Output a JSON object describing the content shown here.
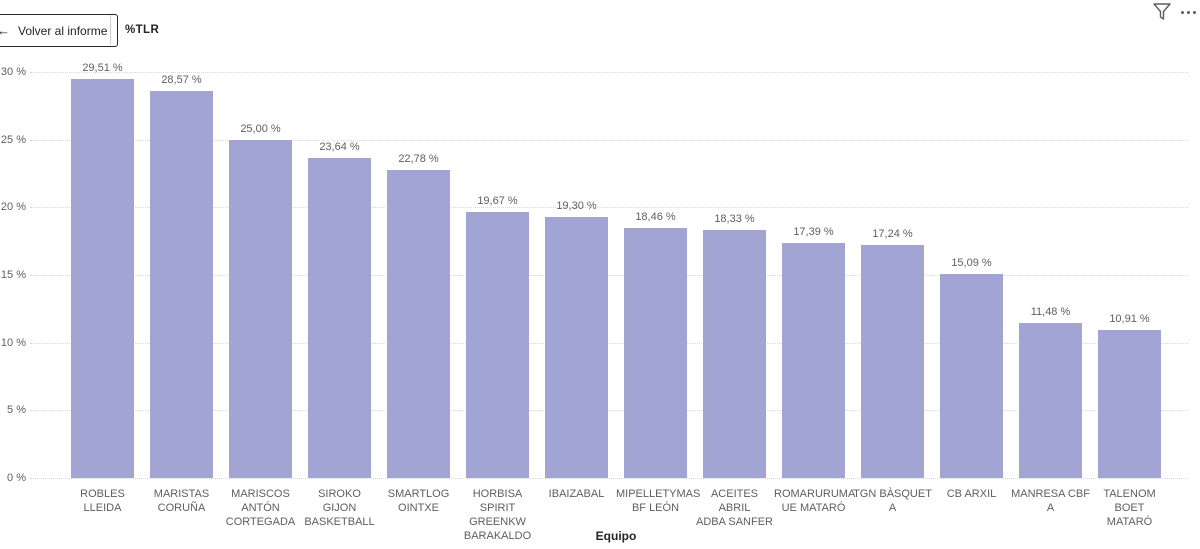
{
  "header": {
    "back_button_label": "Volver al informe",
    "back_arrow_glyph": "←",
    "title": "%TLR",
    "icons": {
      "filter": "filter-funnel-icon",
      "more_options": "ellipsis-icon"
    }
  },
  "chart_data": {
    "type": "bar",
    "title": "%TLR",
    "xlabel": "Equipo",
    "ylabel": "",
    "ylim": [
      0,
      30
    ],
    "grid": true,
    "bar_color": "#a2a4d4",
    "label_color": "#605e5c",
    "y_ticks": [
      {
        "v": 0,
        "label": "0 %"
      },
      {
        "v": 5,
        "label": "5 %"
      },
      {
        "v": 10,
        "label": "10 %"
      },
      {
        "v": 15,
        "label": "15 %"
      },
      {
        "v": 20,
        "label": "20 %"
      },
      {
        "v": 25,
        "label": "25 %"
      },
      {
        "v": 30,
        "label": "30 %"
      }
    ],
    "categories": [
      "ROBLES LLEIDA",
      "MARISTAS CORUÑA",
      "MARISCOS ANTÓN CORTEGADA",
      "SIROKO GIJON BASKETBALL",
      "SMARTLOG OINTXE",
      "HORBISA SPIRIT GREENKW BARAKALDO",
      "IBAIZABAL",
      "MIPELLETYMAS BF LEÓN",
      "ACEITES ABRIL ADBA SANFER",
      "ROMARURUMA UE MATARÓ",
      "TGN BÀSQUET A",
      "CB ARXIL",
      "MANRESA CBF A",
      "TALENOM BOET MATARÓ"
    ],
    "category_display_lines": [
      [
        "ROBLES LLEIDA"
      ],
      [
        "MARISTAS",
        "CORUÑA"
      ],
      [
        "MARISCOS",
        "ANTÓN",
        "CORTEGADA"
      ],
      [
        "SIROKO GIJON",
        "BASKETBALL"
      ],
      [
        "SMARTLOG",
        "OINTXE"
      ],
      [
        "HORBISA SPIRIT",
        "GREENKW",
        "BARAKALDO"
      ],
      [
        "IBAIZABAL"
      ],
      [
        "MIPELLETYMAS",
        "BF LEÓN"
      ],
      [
        "ACEITES ABRIL",
        "ADBA SANFER"
      ],
      [
        "ROMARURUMA",
        "UE MATARÓ"
      ],
      [
        "TGN BÀSQUET",
        "A"
      ],
      [
        "CB ARXIL"
      ],
      [
        "MANRESA CBF",
        "A"
      ],
      [
        "TALENOM BOET",
        "MATARÓ"
      ]
    ],
    "values": [
      29.51,
      28.57,
      25.0,
      23.64,
      22.78,
      19.67,
      19.3,
      18.46,
      18.33,
      17.39,
      17.24,
      15.09,
      11.48,
      10.91
    ],
    "value_labels": [
      "29,51 %",
      "28,57 %",
      "25,00 %",
      "23,64 %",
      "22,78 %",
      "19,67 %",
      "19,30 %",
      "18,46 %",
      "18,33 %",
      "17,39 %",
      "17,24 %",
      "15,09 %",
      "11,48 %",
      "10,91 %"
    ]
  }
}
